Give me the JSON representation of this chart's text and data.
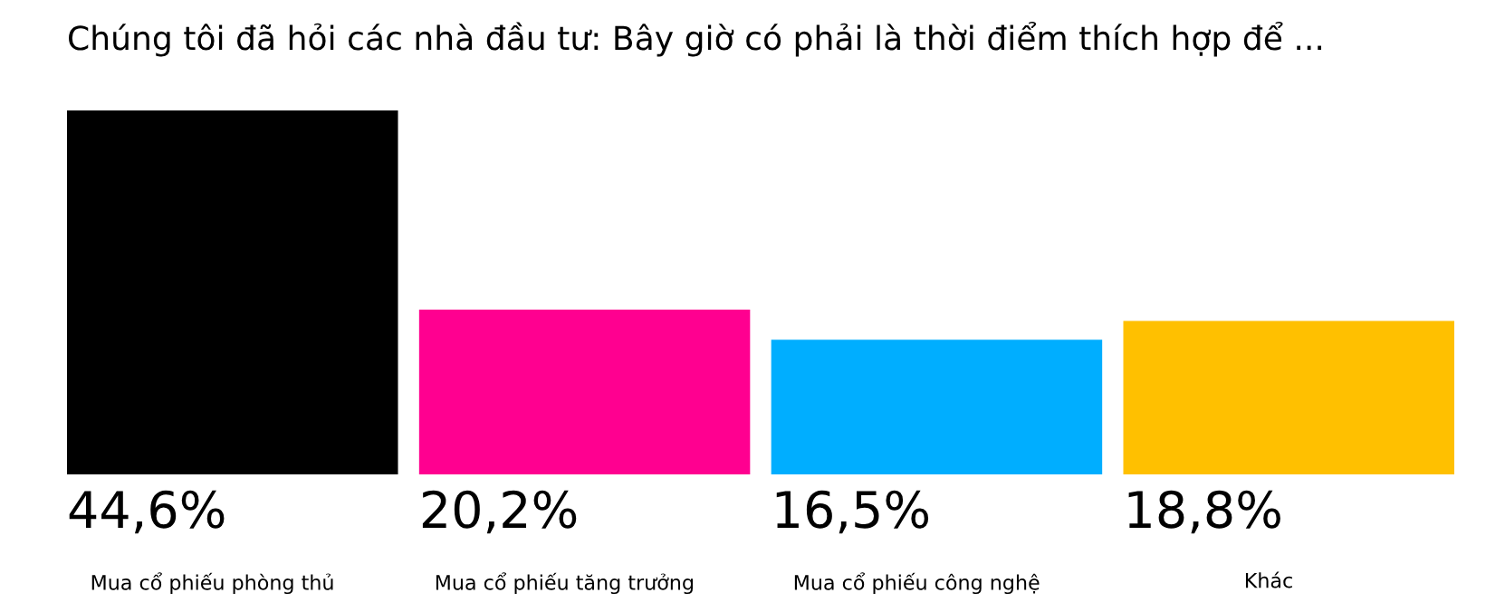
{
  "chart_data": {
    "type": "bar",
    "title": "Chúng tôi đã hỏi các nhà đầu tư: Bây giờ có phải là thời điểm thích hợp để ...",
    "categories": [
      "Mua cổ phiếu phòng thủ",
      "Mua cổ phiếu tăng trưởng",
      "Mua cổ phiếu công nghệ",
      "Khác"
    ],
    "values": [
      44.6,
      20.2,
      16.5,
      18.8
    ],
    "colors": [
      "#000000",
      "#ff0090",
      "#00aeff",
      "#ffc000"
    ],
    "value_labels": [
      "44,6%",
      "20,2%",
      "16,5%",
      "18,8%"
    ],
    "legend": false
  }
}
